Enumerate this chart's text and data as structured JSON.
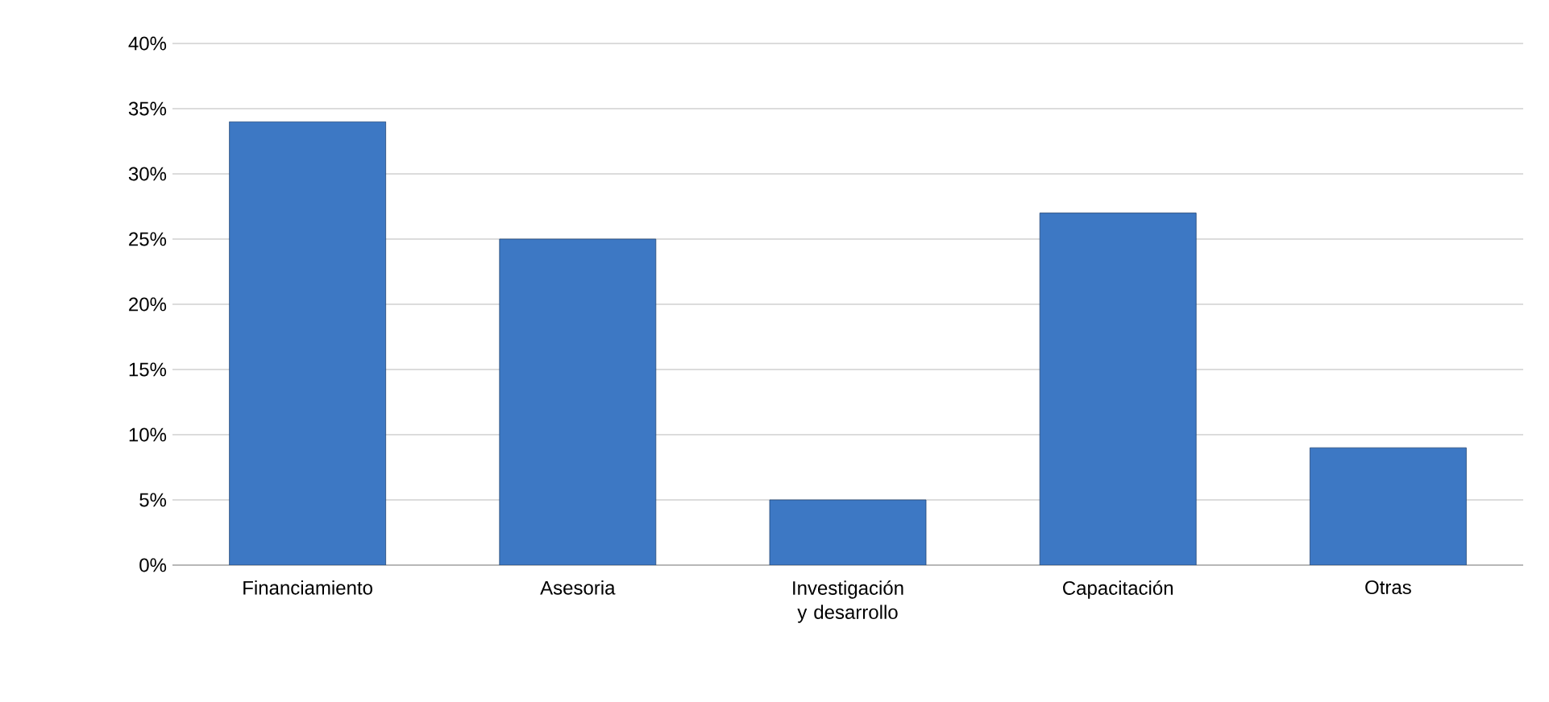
{
  "chart_data": {
    "type": "bar",
    "categories": [
      "Financiamiento",
      "Asesoria",
      "Investigación y desarrollo",
      "Capacitación",
      "Otras"
    ],
    "values": [
      34,
      25,
      5,
      27,
      9
    ],
    "color": "#3d78c4",
    "ylim": [
      0,
      40
    ],
    "yticks": [
      {
        "value": 0,
        "label": "0%"
      },
      {
        "value": 5,
        "label": "5%"
      },
      {
        "value": 10,
        "label": "10%"
      },
      {
        "value": 15,
        "label": "15%"
      },
      {
        "value": 20,
        "label": "20%"
      },
      {
        "value": 25,
        "label": "25%"
      },
      {
        "value": 30,
        "label": "30%"
      },
      {
        "value": 35,
        "label": "35%"
      },
      {
        "value": 40,
        "label": "40%"
      }
    ],
    "grid": "y"
  }
}
